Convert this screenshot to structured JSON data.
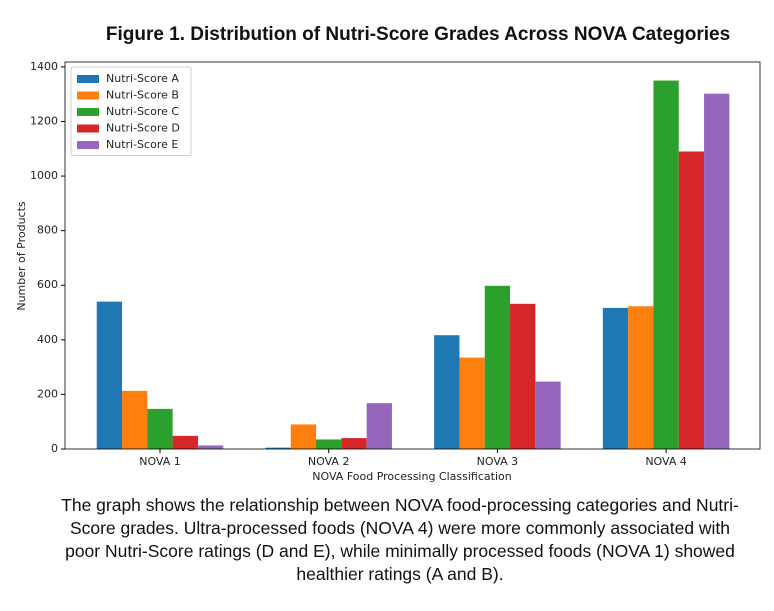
{
  "chart_data": {
    "type": "bar",
    "title": "Figure 1. Distribution of Nutri-Score Grades Across NOVA Categories",
    "x_label": "NOVA Food Processing Classification",
    "y_label": "Number of Products",
    "categories": [
      "NOVA 1",
      "NOVA 2",
      "NOVA 3",
      "NOVA 4"
    ],
    "series": [
      {
        "name": "Nutri-Score A",
        "color": "#1f77b4",
        "values": [
          540,
          5,
          417,
          517
        ]
      },
      {
        "name": "Nutri-Score B",
        "color": "#ff7f0e",
        "values": [
          213,
          90,
          335,
          523
        ]
      },
      {
        "name": "Nutri-Score C",
        "color": "#2ca02c",
        "values": [
          147,
          35,
          598,
          1350
        ]
      },
      {
        "name": "Nutri-Score D",
        "color": "#d62728",
        "values": [
          48,
          40,
          532,
          1090
        ]
      },
      {
        "name": "Nutri-Score E",
        "color": "#9467bd",
        "values": [
          13,
          168,
          247,
          1302
        ]
      }
    ],
    "ylim": [
      0,
      1418
    ],
    "yticks": [
      0,
      200,
      400,
      600,
      800,
      1000,
      1200,
      1400
    ],
    "grid": false,
    "legend": "upper-left",
    "caption": "The graph shows the relationship between NOVA food-processing categories and Nutri-Score grades. Ultra-processed foods (NOVA 4) were more commonly associated with poor Nutri-Score ratings (D and E), while minimally processed foods (NOVA 1) showed healthier ratings (A and B)."
  }
}
